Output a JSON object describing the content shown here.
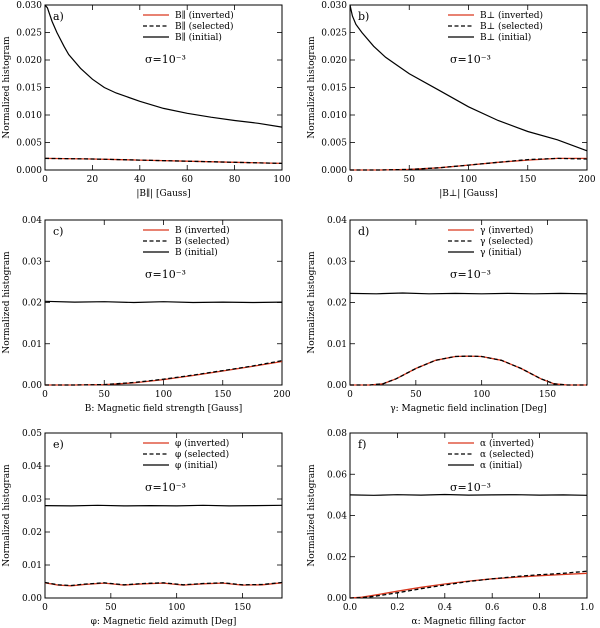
{
  "figure": {
    "colors": {
      "inverted": "#d9381e",
      "selected": "#000000",
      "initial": "#000000"
    },
    "style_names": {
      "inverted": "solid-red",
      "selected": "dashed-black",
      "initial": "solid-black"
    }
  },
  "chart_data": [
    {
      "type": "line",
      "panel_label": "a)",
      "xlabel": "|B∥| [Gauss]",
      "ylabel": "Normalized histogram",
      "xlim": [
        0,
        100
      ],
      "ylim": [
        0,
        0.03
      ],
      "xticks": [
        0,
        20,
        40,
        60,
        80,
        100
      ],
      "xtick_labels": [
        "0",
        "20",
        "40",
        "60",
        "80",
        "100"
      ],
      "yticks": [
        0,
        0.005,
        0.01,
        0.015,
        0.02,
        0.025,
        0.03
      ],
      "ytick_labels": [
        "0.000",
        "0.005",
        "0.010",
        "0.015",
        "0.020",
        "0.025",
        "0.030"
      ],
      "annotation": "σ=10⁻³",
      "legend": [
        {
          "key": "inverted",
          "label": "B∥ (inverted)"
        },
        {
          "key": "selected",
          "label": "B∥ (selected)"
        },
        {
          "key": "initial",
          "label": "B∥ (initial)"
        }
      ],
      "series": [
        {
          "name": "initial",
          "x": [
            0,
            1,
            3,
            5,
            8,
            10,
            15,
            20,
            25,
            30,
            40,
            50,
            60,
            70,
            80,
            90,
            100
          ],
          "y": [
            0.03,
            0.0295,
            0.027,
            0.025,
            0.0225,
            0.021,
            0.0185,
            0.0165,
            0.015,
            0.014,
            0.0125,
            0.0112,
            0.0103,
            0.0096,
            0.009,
            0.0085,
            0.0078
          ]
        },
        {
          "name": "selected",
          "x": [
            0,
            20,
            40,
            60,
            80,
            100
          ],
          "y": [
            0.0021,
            0.002,
            0.0018,
            0.0016,
            0.0014,
            0.0012
          ]
        },
        {
          "name": "inverted",
          "x": [
            0,
            20,
            40,
            60,
            80,
            100
          ],
          "y": [
            0.0021,
            0.002,
            0.0018,
            0.0016,
            0.0014,
            0.0012
          ]
        }
      ]
    },
    {
      "type": "line",
      "panel_label": "b)",
      "xlabel": "|B⊥| [Gauss]",
      "ylabel": "Normalized histogram",
      "xlim": [
        0,
        200
      ],
      "ylim": [
        0,
        0.03
      ],
      "xticks": [
        0,
        50,
        100,
        150,
        200
      ],
      "xtick_labels": [
        "0",
        "50",
        "100",
        "150",
        "200"
      ],
      "yticks": [
        0,
        0.005,
        0.01,
        0.015,
        0.02,
        0.025,
        0.03
      ],
      "ytick_labels": [
        "0.000",
        "0.005",
        "0.010",
        "0.015",
        "0.020",
        "0.025",
        "0.030"
      ],
      "annotation": "σ=10⁻³",
      "legend": [
        {
          "key": "inverted",
          "label": "B⊥ (inverted)"
        },
        {
          "key": "selected",
          "label": "B⊥ (selected)"
        },
        {
          "key": "initial",
          "label": "B⊥ (initial)"
        }
      ],
      "series": [
        {
          "name": "initial",
          "x": [
            0,
            2,
            5,
            10,
            20,
            30,
            40,
            50,
            75,
            100,
            125,
            150,
            175,
            200
          ],
          "y": [
            0.03,
            0.028,
            0.0265,
            0.025,
            0.0225,
            0.0205,
            0.019,
            0.0175,
            0.0145,
            0.0115,
            0.009,
            0.007,
            0.0055,
            0.0035
          ]
        },
        {
          "name": "selected",
          "x": [
            0,
            25,
            50,
            75,
            100,
            125,
            150,
            175,
            200
          ],
          "y": [
            0.0,
            0.0,
            0.0001,
            0.0004,
            0.0009,
            0.0014,
            0.0019,
            0.0021,
            0.002
          ]
        },
        {
          "name": "inverted",
          "x": [
            0,
            25,
            50,
            75,
            100,
            125,
            150,
            175,
            200
          ],
          "y": [
            0.0,
            0.0,
            0.0001,
            0.0004,
            0.0009,
            0.0014,
            0.0018,
            0.0021,
            0.0021
          ]
        }
      ]
    },
    {
      "type": "line",
      "panel_label": "c)",
      "xlabel": "B: Magnetic field strength [Gauss]",
      "ylabel": "Normalized histogram",
      "xlim": [
        0,
        200
      ],
      "ylim": [
        0,
        0.04
      ],
      "xticks": [
        0,
        50,
        100,
        150,
        200
      ],
      "xtick_labels": [
        "0",
        "50",
        "100",
        "150",
        "200"
      ],
      "yticks": [
        0,
        0.01,
        0.02,
        0.03,
        0.04
      ],
      "ytick_labels": [
        "0.00",
        "0.01",
        "0.02",
        "0.03",
        "0.04"
      ],
      "annotation": "σ=10⁻³",
      "legend": [
        {
          "key": "inverted",
          "label": "B (inverted)"
        },
        {
          "key": "selected",
          "label": "B (selected)"
        },
        {
          "key": "initial",
          "label": "B (initial)"
        }
      ],
      "series": [
        {
          "name": "initial",
          "x": [
            0,
            25,
            50,
            75,
            100,
            125,
            150,
            175,
            200
          ],
          "y": [
            0.0203,
            0.0201,
            0.0202,
            0.02,
            0.0202,
            0.02,
            0.0201,
            0.02,
            0.0201
          ]
        },
        {
          "name": "selected",
          "x": [
            0,
            25,
            50,
            75,
            100,
            125,
            150,
            175,
            200
          ],
          "y": [
            0.0,
            0.0,
            0.0001,
            0.0006,
            0.0014,
            0.0024,
            0.0035,
            0.0046,
            0.0059
          ]
        },
        {
          "name": "inverted",
          "x": [
            0,
            25,
            50,
            75,
            100,
            125,
            150,
            175,
            200
          ],
          "y": [
            0.0,
            0.0,
            0.0001,
            0.0005,
            0.0013,
            0.0023,
            0.0034,
            0.0045,
            0.0057
          ]
        }
      ]
    },
    {
      "type": "line",
      "panel_label": "d)",
      "xlabel": "γ: Magnetic field inclination [Deg]",
      "ylabel": "Normalized histogram",
      "xlim": [
        0,
        180
      ],
      "ylim": [
        0,
        0.04
      ],
      "xticks": [
        0,
        50,
        100,
        150
      ],
      "xtick_labels": [
        "0",
        "50",
        "100",
        "150"
      ],
      "yticks": [
        0,
        0.01,
        0.02,
        0.03,
        0.04
      ],
      "ytick_labels": [
        "0.00",
        "0.01",
        "0.02",
        "0.03",
        "0.04"
      ],
      "annotation": "σ=10⁻³",
      "legend": [
        {
          "key": "inverted",
          "label": "γ (inverted)"
        },
        {
          "key": "selected",
          "label": "γ (selected)"
        },
        {
          "key": "initial",
          "label": "γ (initial)"
        }
      ],
      "series": [
        {
          "name": "initial",
          "x": [
            0,
            20,
            40,
            60,
            80,
            100,
            120,
            140,
            160,
            180
          ],
          "y": [
            0.0222,
            0.0221,
            0.0223,
            0.0221,
            0.0222,
            0.0221,
            0.0222,
            0.0221,
            0.0222,
            0.0221
          ]
        },
        {
          "name": "selected",
          "x": [
            0,
            15,
            25,
            35,
            50,
            65,
            80,
            90,
            100,
            115,
            130,
            145,
            155,
            165,
            180
          ],
          "y": [
            0.0,
            0.0,
            0.0003,
            0.0015,
            0.004,
            0.006,
            0.0069,
            0.007,
            0.0069,
            0.006,
            0.004,
            0.0015,
            0.0003,
            0.0,
            0.0
          ]
        },
        {
          "name": "inverted",
          "x": [
            0,
            15,
            25,
            35,
            50,
            65,
            80,
            90,
            100,
            115,
            130,
            145,
            155,
            165,
            180
          ],
          "y": [
            0.0,
            0.0,
            0.0003,
            0.0015,
            0.004,
            0.006,
            0.0069,
            0.007,
            0.0069,
            0.006,
            0.004,
            0.0015,
            0.0003,
            0.0,
            0.0
          ]
        }
      ]
    },
    {
      "type": "line",
      "panel_label": "e)",
      "xlabel": "φ: Magnetic field azimuth [Deg]",
      "ylabel": "Normalized histogram",
      "xlim": [
        0,
        180
      ],
      "ylim": [
        0,
        0.05
      ],
      "xticks": [
        0,
        50,
        100,
        150
      ],
      "xtick_labels": [
        "0",
        "50",
        "100",
        "150"
      ],
      "yticks": [
        0,
        0.01,
        0.02,
        0.03,
        0.04,
        0.05
      ],
      "ytick_labels": [
        "0.00",
        "0.01",
        "0.02",
        "0.03",
        "0.04",
        "0.05"
      ],
      "annotation": "σ=10⁻³",
      "legend": [
        {
          "key": "inverted",
          "label": "φ (inverted)"
        },
        {
          "key": "selected",
          "label": "φ (selected)"
        },
        {
          "key": "initial",
          "label": "φ (initial)"
        }
      ],
      "series": [
        {
          "name": "initial",
          "x": [
            0,
            20,
            40,
            60,
            80,
            100,
            120,
            140,
            160,
            180
          ],
          "y": [
            0.028,
            0.0279,
            0.0281,
            0.0279,
            0.028,
            0.0279,
            0.0281,
            0.0279,
            0.028,
            0.0281
          ]
        },
        {
          "name": "selected",
          "x": [
            0,
            10,
            20,
            30,
            45,
            60,
            75,
            90,
            105,
            120,
            135,
            150,
            165,
            180
          ],
          "y": [
            0.0047,
            0.004,
            0.0038,
            0.0042,
            0.0046,
            0.004,
            0.0044,
            0.0046,
            0.004,
            0.0044,
            0.0046,
            0.004,
            0.0041,
            0.0047
          ]
        },
        {
          "name": "inverted",
          "x": [
            0,
            10,
            20,
            30,
            45,
            60,
            75,
            90,
            105,
            120,
            135,
            150,
            165,
            180
          ],
          "y": [
            0.0046,
            0.0039,
            0.0037,
            0.0041,
            0.0045,
            0.0039,
            0.0043,
            0.0045,
            0.0039,
            0.0043,
            0.0045,
            0.0039,
            0.004,
            0.0046
          ]
        }
      ]
    },
    {
      "type": "line",
      "panel_label": "f)",
      "xlabel": "α: Magnetic filling factor",
      "ylabel": "Normalized histogram",
      "xlim": [
        0,
        1
      ],
      "ylim": [
        0,
        0.08
      ],
      "xticks": [
        0,
        0.2,
        0.4,
        0.6,
        0.8,
        1.0
      ],
      "xtick_labels": [
        "0.0",
        "0.2",
        "0.4",
        "0.6",
        "0.8",
        "1.0"
      ],
      "yticks": [
        0,
        0.02,
        0.04,
        0.06,
        0.08
      ],
      "ytick_labels": [
        "0.00",
        "0.02",
        "0.04",
        "0.06",
        "0.08"
      ],
      "annotation": "σ=10⁻³",
      "legend": [
        {
          "key": "inverted",
          "label": "α (inverted)"
        },
        {
          "key": "selected",
          "label": "α (selected)"
        },
        {
          "key": "initial",
          "label": "α (initial)"
        }
      ],
      "series": [
        {
          "name": "initial",
          "x": [
            0,
            0.1,
            0.2,
            0.3,
            0.4,
            0.5,
            0.6,
            0.7,
            0.8,
            0.9,
            1.0
          ],
          "y": [
            0.05,
            0.0498,
            0.0501,
            0.0499,
            0.0502,
            0.0499,
            0.05,
            0.0501,
            0.0499,
            0.05,
            0.0498
          ]
        },
        {
          "name": "selected",
          "x": [
            0,
            0.05,
            0.1,
            0.2,
            0.3,
            0.4,
            0.5,
            0.6,
            0.7,
            0.8,
            0.9,
            1.0
          ],
          "y": [
            0.0,
            0.0002,
            0.0008,
            0.0025,
            0.0045,
            0.0063,
            0.008,
            0.0093,
            0.0104,
            0.0113,
            0.012,
            0.013
          ]
        },
        {
          "name": "inverted",
          "x": [
            0,
            0.05,
            0.1,
            0.2,
            0.3,
            0.4,
            0.5,
            0.6,
            0.7,
            0.8,
            0.9,
            1.0
          ],
          "y": [
            0.0,
            0.0004,
            0.0013,
            0.0033,
            0.0052,
            0.0068,
            0.0082,
            0.0093,
            0.0101,
            0.0108,
            0.0114,
            0.012
          ]
        }
      ]
    }
  ]
}
